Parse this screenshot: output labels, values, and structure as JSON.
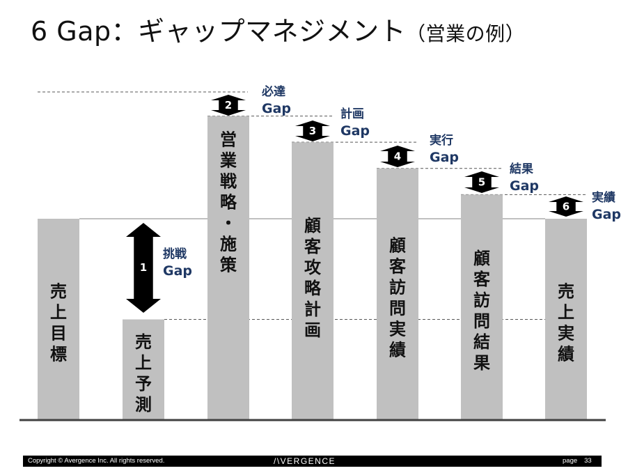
{
  "slide": {
    "title": "6 Gap：ギャップマネジメント",
    "subtitle": "（営業の例）"
  },
  "bars": [
    {
      "label": "売上目標",
      "level": 1.0
    },
    {
      "label": "売上予測",
      "level": 0.5
    },
    {
      "label": "営業戦略・施策",
      "level": 1.51
    },
    {
      "label": "顧客攻略計画",
      "level": 1.38
    },
    {
      "label": "顧客訪問実績",
      "level": 1.25
    },
    {
      "label": "顧客訪問結果",
      "level": 1.12
    },
    {
      "label": "売上実績",
      "level": 1.0
    }
  ],
  "gaps": [
    {
      "number": "1",
      "name": "挑戦",
      "suffix": "Gap"
    },
    {
      "number": "2",
      "name": "必達",
      "suffix": "Gap"
    },
    {
      "number": "3",
      "name": "計画",
      "suffix": "Gap"
    },
    {
      "number": "4",
      "name": "実行",
      "suffix": "Gap"
    },
    {
      "number": "5",
      "name": "結果",
      "suffix": "Gap"
    },
    {
      "number": "6",
      "name": "実績",
      "suffix": "Gap"
    }
  ],
  "colors": {
    "bar": "#c0c0c0",
    "gap_label": "#1f3864",
    "arrow": "#000000",
    "baseline": "#404040",
    "dashed": "#555555"
  },
  "footer": {
    "copyright": "Copyright © Avergence Inc. All rights reserved.",
    "brand": "/\\VERGENCE",
    "page_label": "page",
    "page_number": "33"
  }
}
